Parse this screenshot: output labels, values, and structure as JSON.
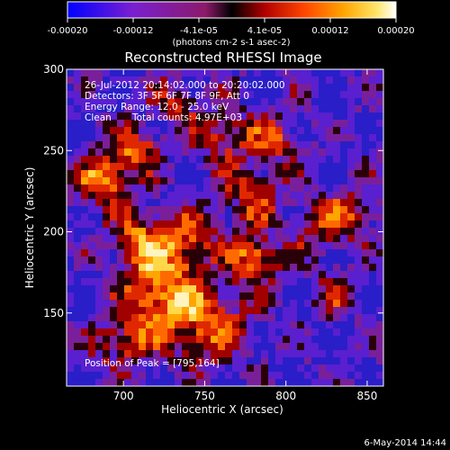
{
  "chart_data": {
    "type": "heatmap",
    "title": "Reconstructed RHESSI Image",
    "xlabel": "Heliocentric X (arcsec)",
    "ylabel": "Heliocentric Y (arcsec)",
    "xlim": [
      665,
      860
    ],
    "ylim": [
      105,
      300
    ],
    "x_ticks": [
      {
        "value": 700,
        "label": "700"
      },
      {
        "value": 750,
        "label": "750"
      },
      {
        "value": 800,
        "label": "800"
      },
      {
        "value": 850,
        "label": "850"
      }
    ],
    "y_ticks": [
      {
        "value": 150,
        "label": "150"
      },
      {
        "value": 200,
        "label": "200"
      },
      {
        "value": 250,
        "label": "250"
      },
      {
        "value": 300,
        "label": "300"
      }
    ],
    "colorbar": {
      "range": [
        -0.0002,
        0.0002
      ],
      "tick_labels": [
        "-0.00020",
        "-0.00012",
        "-4.1e-05",
        "4.1e-05",
        "0.00012",
        "0.00020"
      ],
      "unit_label": "(photons cm-2 s-1 asec-2)",
      "colors": [
        "#0000ff",
        "#7a1fd0",
        "#8c1a6a",
        "#000000",
        "#b00000",
        "#ff4500",
        "#ffa500",
        "#ffe566",
        "#ffffff"
      ]
    },
    "annotations": {
      "time_range": "26-Jul-2012 20:14:02.000 to 20:20:02.000",
      "detectors": "Detectors: 3F 5F 6F 7F 8F 9F, Att 0",
      "energy_range": "Energy Range: 12.0 - 25.0 keV",
      "algorithm": "Clean",
      "total_counts": "Total counts: 4.97E+03",
      "peak": "Position of Peak = [795,164]"
    },
    "peak_position": [
      795,
      164
    ],
    "footer_date": "6-May-2014 14:44",
    "grid": false
  }
}
